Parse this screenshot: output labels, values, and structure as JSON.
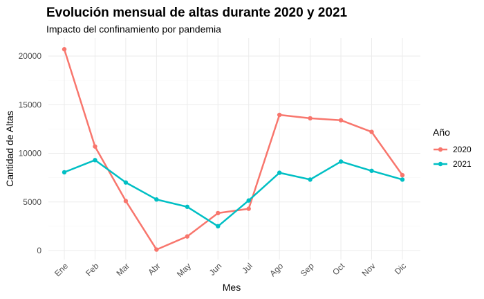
{
  "chart_data": {
    "type": "line",
    "title": "Evolución mensual de altas durante 2020 y 2021",
    "subtitle": "Impacto del confinamiento por pandemia",
    "xlabel": "Mes",
    "ylabel": "Cantidad de Altas",
    "categories": [
      "Ene",
      "Feb",
      "Mar",
      "Abr",
      "May",
      "Jun",
      "Jul",
      "Ago",
      "Sep",
      "Oct",
      "Nov",
      "Dic"
    ],
    "ylim": [
      0,
      21000
    ],
    "yticks": [
      0,
      5000,
      10000,
      15000,
      20000
    ],
    "grid": true,
    "legend": {
      "title": "Año",
      "placement": "right"
    },
    "series": [
      {
        "name": "2020",
        "color": "#F8766D",
        "values": [
          20700,
          10700,
          5100,
          100,
          1450,
          3850,
          4300,
          13950,
          13600,
          13400,
          12200,
          7750
        ]
      },
      {
        "name": "2021",
        "color": "#00BFC4",
        "values": [
          8050,
          9300,
          7000,
          5250,
          4500,
          2500,
          5150,
          8000,
          7300,
          9150,
          8200,
          7300
        ]
      }
    ]
  }
}
